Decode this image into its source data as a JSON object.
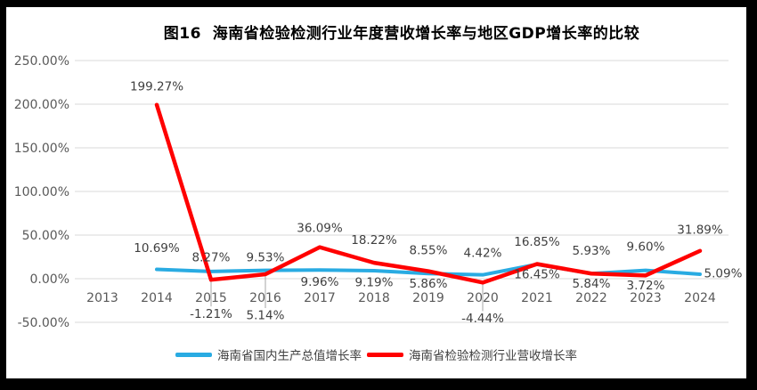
{
  "page": {
    "frame_color": "#000000",
    "canvas_color": "#FFFFFF",
    "gridline_color": "#D9D9D9",
    "axis_label_color": "#595959",
    "data_label_color": "#3F3F3F",
    "leader_line_color": "#A6A6A6"
  },
  "chart_data": {
    "type": "line",
    "title": "图16  海南省检验检测行业年度营收增长率与地区GDP增长率的比较",
    "categories": [
      "2013",
      "2014",
      "2015",
      "2016",
      "2017",
      "2018",
      "2019",
      "2020",
      "2021",
      "2022",
      "2023",
      "2024"
    ],
    "grid": true,
    "legend_position": "bottom",
    "ylim": [
      -50,
      250
    ],
    "y_axis_ticks": [
      {
        "value": 250,
        "label": "250.00%"
      },
      {
        "value": 200,
        "label": "200.00%"
      },
      {
        "value": 150,
        "label": "150.00%"
      },
      {
        "value": 100,
        "label": "100.00%"
      },
      {
        "value": 50,
        "label": "50.00%"
      },
      {
        "value": 0,
        "label": "0.00%"
      },
      {
        "value": -50,
        "label": "-50.00%"
      }
    ],
    "series": [
      {
        "name": "海南省国内生产总值增长率",
        "color": "#29ABE2",
        "points": [
          {
            "category": "2014",
            "value": 10.69,
            "label": "10.69%",
            "dx": 0,
            "dy": -24
          },
          {
            "category": "2015",
            "value": 8.27,
            "label": "8.27%",
            "dx": 0,
            "dy": -16
          },
          {
            "category": "2016",
            "value": 9.53,
            "label": "9.53%",
            "dx": 0,
            "dy": -15
          },
          {
            "category": "2017",
            "value": 9.96,
            "label": "9.96%",
            "dx": 0,
            "dy": 13
          },
          {
            "category": "2018",
            "value": 9.19,
            "label": "9.19%",
            "dx": 0,
            "dy": 13
          },
          {
            "category": "2019",
            "value": 5.86,
            "label": "5.86%",
            "dx": 0,
            "dy": 11
          },
          {
            "category": "2020",
            "value": 4.42,
            "label": "4.42%",
            "dx": 0,
            "dy": -25
          },
          {
            "category": "2021",
            "value": 16.45,
            "label": "16.45%",
            "dx": 0,
            "dy": 11
          },
          {
            "category": "2022",
            "value": 5.93,
            "label": "5.93%",
            "dx": 0,
            "dy": -26
          },
          {
            "category": "2023",
            "value": 9.6,
            "label": "9.60%",
            "dx": 0,
            "dy": -27
          },
          {
            "category": "2024",
            "value": 5.09,
            "label": "5.09%",
            "dx": 26,
            "dy": -1
          }
        ]
      },
      {
        "name": "海南省检验检测行业营收增长率",
        "color": "#FF0000",
        "points": [
          {
            "category": "2014",
            "value": 199.27,
            "label": "199.27%",
            "dx": 0,
            "dy": -21
          },
          {
            "category": "2015",
            "value": -1.21,
            "label": "-1.21%",
            "dx": 0,
            "dy": 38,
            "leader": true
          },
          {
            "category": "2016",
            "value": 5.14,
            "label": "5.14%",
            "dx": 0,
            "dy": 46,
            "leader": true
          },
          {
            "category": "2017",
            "value": 36.09,
            "label": "36.09%",
            "dx": 0,
            "dy": -22
          },
          {
            "category": "2018",
            "value": 18.22,
            "label": "18.22%",
            "dx": 0,
            "dy": -26
          },
          {
            "category": "2019",
            "value": 8.55,
            "label": "8.55%",
            "dx": 0,
            "dy": -24
          },
          {
            "category": "2020",
            "value": -4.44,
            "label": "-4.44%",
            "dx": 0,
            "dy": 40,
            "leader": true
          },
          {
            "category": "2021",
            "value": 16.85,
            "label": "16.85%",
            "dx": 0,
            "dy": -25
          },
          {
            "category": "2022",
            "value": 5.84,
            "label": "5.84%",
            "dx": 0,
            "dy": 11
          },
          {
            "category": "2023",
            "value": 3.72,
            "label": "3.72%",
            "dx": 0,
            "dy": 11
          },
          {
            "category": "2024",
            "value": 31.89,
            "label": "31.89%",
            "dx": 0,
            "dy": -24
          }
        ]
      }
    ]
  }
}
